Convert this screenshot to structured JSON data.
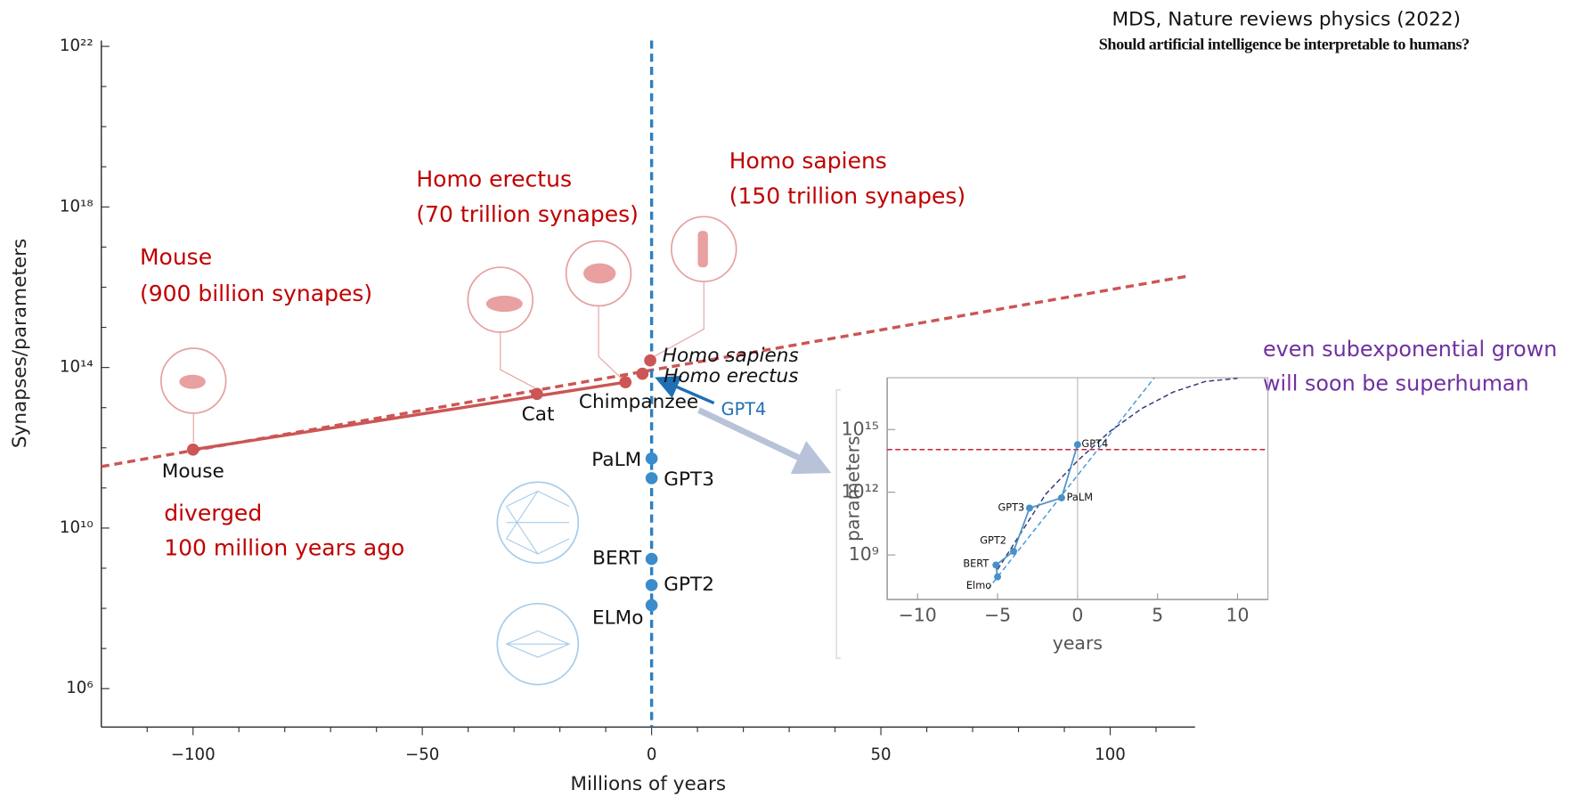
{
  "header": {
    "citation": "MDS, Nature reviews physics (2022)",
    "paper_title": "Should artificial intelligence be interpretable to humans?"
  },
  "chart_data": [
    {
      "type": "scatter",
      "x_label": "Millions of years",
      "y_label": "Synapses/parameters",
      "y_scale": "log",
      "xlim": [
        -120,
        118.5
      ],
      "xticks": [
        {
          "value": -100,
          "label": "−100"
        },
        {
          "value": -50,
          "label": "−50"
        },
        0,
        50,
        100
      ],
      "xminorticks": [
        -110,
        -90,
        -80,
        -70,
        -60,
        -40,
        -30,
        -20,
        -10,
        10,
        20,
        30,
        40,
        60,
        70,
        80,
        90,
        110
      ],
      "ylim": [
        110000,
        1.4e+22
      ],
      "yticks": [
        {
          "value": 1000000,
          "label": "10⁶"
        },
        {
          "value": 10000000000,
          "label": "10¹⁰"
        },
        {
          "value": 100000000000000,
          "label": "10¹⁴"
        },
        {
          "value": 1e+18,
          "label": "10¹⁸"
        },
        {
          "value": 1e+22,
          "label": "10²²"
        }
      ],
      "yminorticks": [
        10000000,
        100000000,
        1000000000,
        100000000000,
        1000000000000,
        10000000000000,
        1000000000000000.0,
        1e+16,
        1e+17,
        1e+19,
        1e+20,
        1e+21
      ],
      "series": [
        {
          "color": "#cc5555",
          "x": [
            -100,
            -25,
            -5.7,
            -2,
            -0.3
          ],
          "values": [
            900000000000,
            22000000000000,
            43000000000000,
            70000000000000,
            150000000000000
          ],
          "labels": [
            "Mouse",
            "Cat",
            "Chimpanzee",
            "Homo erectus",
            "Homo sapiens"
          ]
        },
        {
          "color": "#3a8ccc",
          "x": [
            0,
            0,
            0,
            0,
            0
          ],
          "values": [
            540000000000,
            175000000000,
            1700000000,
            380000000,
            120000000
          ],
          "labels": [
            "PaLM",
            "GPT3",
            "BERT",
            "GPT2",
            "ELMo"
          ]
        }
      ],
      "lines": [
        {
          "color": "#cc5555",
          "style": "solid",
          "x": [
            -100,
            -5.7
          ],
          "values": [
            900000000000,
            43000000000000
          ]
        },
        {
          "color": "#cc5555",
          "style": "dashed",
          "x": [
            -120,
            117
          ],
          "values": [
            340000000000,
            19000000000000000
          ]
        },
        {
          "color": "#2f7fc0",
          "style": "dashed",
          "x": [
            0,
            0
          ],
          "values": [
            1.4e+22,
            110000
          ]
        }
      ],
      "annotations": [
        "Mouse",
        "(900 billion synapes)",
        "Homo erectus",
        "(70 trillion synapes)",
        "Homo sapiens",
        "(150 trillion synapes)",
        "diverged",
        "100 million years ago",
        "GPT4"
      ]
    },
    {
      "type": "scatter",
      "x_label": "years",
      "y_label": "parameters",
      "y_scale": "log",
      "xlim": [
        -11.9,
        11.9
      ],
      "xticks": [
        {
          "value": -10,
          "label": "−10"
        },
        {
          "value": -5,
          "label": "−5"
        },
        0,
        5,
        10
      ],
      "ylim": [
        7400000,
        3e+17
      ],
      "yticks": [
        {
          "value": 1000000000,
          "label": "10⁹"
        },
        {
          "value": 1000000000000,
          "label": "10¹²"
        },
        {
          "value": 1000000000000000.0,
          "label": "10¹⁵"
        }
      ],
      "series": [
        {
          "color": "#4a90c8",
          "connect": true,
          "x": [
            -5,
            -5.1,
            -4,
            -3,
            -1,
            0
          ],
          "values": [
            90000000,
            330000000,
            1500000000,
            175000000000,
            540000000000,
            190000000000000
          ],
          "labels": [
            "Elmo",
            "BERT",
            "GPT2",
            "GPT3",
            "PaLM",
            "GPT4"
          ]
        }
      ],
      "lines": [
        {
          "color": "#c0203a",
          "style": "dashed",
          "x": [
            -11.9,
            11.9
          ],
          "values": [
            110000000000000,
            110000000000000
          ]
        },
        {
          "color": "#4a9ad8",
          "style": "dashed",
          "x": [
            -5.6,
            4.8
          ],
          "values": [
            23000000,
            3e+17
          ]
        },
        {
          "color": "#353a7a",
          "style": "dashed",
          "x": [
            -5,
            -2,
            0,
            2,
            4,
            6,
            8,
            10
          ],
          "values": [
            200000000,
            790000000000,
            32000000000000,
            790000000000000,
            1e+16,
            63000000000000000,
            2e+17,
            2.8e+17
          ]
        }
      ],
      "annotations": [
        "even subexponential grown",
        "will soon be superhuman"
      ]
    }
  ]
}
